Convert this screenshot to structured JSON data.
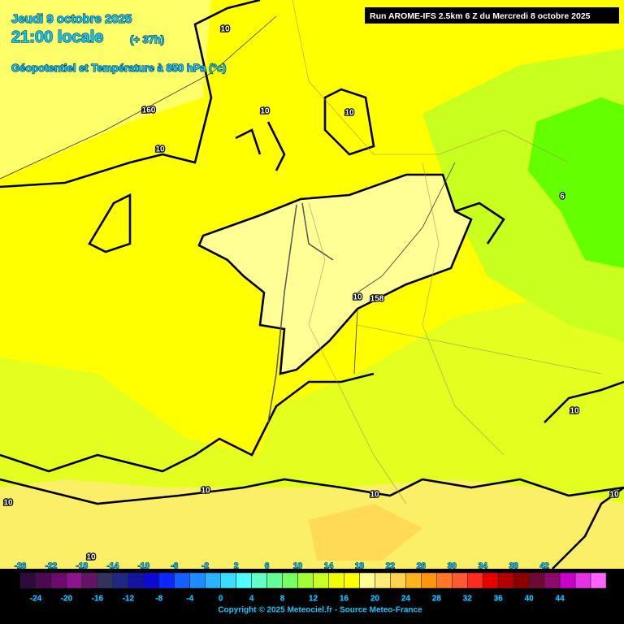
{
  "header": {
    "date": "Jeudi 9 octobre 2025",
    "time": "21:00 locale",
    "lead": "(+ 37h)",
    "subtitle": "Géopotentiel et Température à 850 hPa (°c)"
  },
  "run": "Run AROME-IFS 2.5km 6 Z du Mercredi 8 octobre 2025",
  "contour_labels": [
    "10",
    "160",
    "10",
    "10",
    "10",
    "6",
    "10",
    "158",
    "10",
    "10",
    "10",
    "10",
    "10",
    "10"
  ],
  "legend": {
    "top_labels": [
      -26,
      -22,
      -18,
      -14,
      -10,
      -6,
      -2,
      2,
      6,
      10,
      14,
      18,
      22,
      26,
      30,
      34,
      38,
      42
    ],
    "bottom_labels": [
      -24,
      -20,
      -16,
      -12,
      -8,
      -4,
      0,
      4,
      8,
      12,
      16,
      20,
      24,
      28,
      32,
      36,
      40,
      44
    ],
    "colors": [
      "#2d0a3c",
      "#4b0a50",
      "#6e0a6e",
      "#8c148c",
      "#641464",
      "#32325a",
      "#1e2882",
      "#1414a0",
      "#0a0ad2",
      "#0a28ff",
      "#1460ff",
      "#1e8cff",
      "#28b4ff",
      "#3cdcff",
      "#50ffff",
      "#64ffc8",
      "#64ff96",
      "#78ff64",
      "#a0ff32",
      "#c8ff1e",
      "#f0ff00",
      "#ffff00",
      "#ffff96",
      "#ffeb78",
      "#ffd250",
      "#ffb41e",
      "#ff960a",
      "#ff7828",
      "#ff5a32",
      "#ff2a1e",
      "#e60000",
      "#b40000",
      "#8c0000",
      "#6e0a32",
      "#8c0a6e",
      "#c800c8",
      "#e632e6",
      "#ff64ff"
    ]
  },
  "copyright": "Copyright © 2025 Meteociel.fr - Source Meteo-France"
}
